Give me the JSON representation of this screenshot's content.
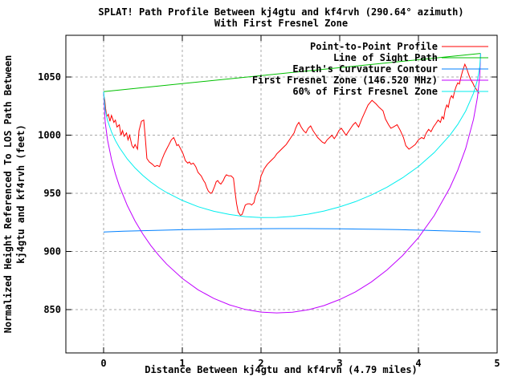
{
  "chart_data": {
    "type": "line",
    "title_line1": "SPLAT! Path Profile Between kj4gtu and kf4rvh (290.64° azimuth)",
    "title_line2": "With First Fresnel Zone",
    "xlabel": "Distance Between kj4gtu and kf4rvh (4.79 miles)",
    "ylabel_line1": "Normalized Height Referenced To LOS Path Between",
    "ylabel_line2": "kj4gtu and kf4rvh (feet)",
    "grid": true,
    "legend_position": "top-right",
    "colors": {
      "background": "#ffffff",
      "border": "#000000",
      "grid": "#a8a8a8",
      "text": "#000000"
    },
    "x_axis": {
      "range": [
        -0.48,
        5.0
      ],
      "ticks": [
        0,
        1,
        2,
        3,
        4,
        5
      ]
    },
    "y_axis": {
      "range": [
        812.8,
        1085.9
      ],
      "ticks": [
        850,
        900,
        950,
        1000,
        1050
      ]
    },
    "path": {
      "start_site": "kj4gtu",
      "end_site": "kf4rvh",
      "azimuth_deg": 290.64,
      "distance_miles": 4.79,
      "frequency_mhz": 146.52
    },
    "series": [
      {
        "name": "Point-to-Point Profile",
        "color": "#ff0000",
        "points": [
          [
            0,
            1035
          ],
          [
            0.015,
            1030
          ],
          [
            0.025,
            1023
          ],
          [
            0.04,
            1016
          ],
          [
            0.06,
            1018
          ],
          [
            0.08,
            1012
          ],
          [
            0.1,
            1017
          ],
          [
            0.13,
            1011
          ],
          [
            0.15,
            1013
          ],
          [
            0.17,
            1007
          ],
          [
            0.2,
            1009
          ],
          [
            0.22,
            1000
          ],
          [
            0.24,
            1004
          ],
          [
            0.26,
            999
          ],
          [
            0.29,
            1002
          ],
          [
            0.31,
            996
          ],
          [
            0.33,
            1000
          ],
          [
            0.36,
            991
          ],
          [
            0.38,
            989
          ],
          [
            0.4,
            992
          ],
          [
            0.43,
            988
          ],
          [
            0.45,
            1004
          ],
          [
            0.48,
            1012
          ],
          [
            0.51,
            1013
          ],
          [
            0.53,
            997
          ],
          [
            0.55,
            980
          ],
          [
            0.58,
            977
          ],
          [
            0.62,
            975
          ],
          [
            0.65,
            973
          ],
          [
            0.68,
            974
          ],
          [
            0.71,
            973
          ],
          [
            0.74,
            979
          ],
          [
            0.77,
            984
          ],
          [
            0.8,
            988
          ],
          [
            0.83,
            992
          ],
          [
            0.86,
            996
          ],
          [
            0.89,
            998
          ],
          [
            0.91,
            995
          ],
          [
            0.93,
            991
          ],
          [
            0.95,
            992
          ],
          [
            0.98,
            988
          ],
          [
            1.01,
            984
          ],
          [
            1.04,
            978
          ],
          [
            1.07,
            976
          ],
          [
            1.09,
            977
          ],
          [
            1.11,
            975
          ],
          [
            1.14,
            976
          ],
          [
            1.17,
            973
          ],
          [
            1.2,
            968
          ],
          [
            1.24,
            965
          ],
          [
            1.27,
            961
          ],
          [
            1.29,
            959
          ],
          [
            1.31,
            955
          ],
          [
            1.33,
            952
          ],
          [
            1.36,
            950
          ],
          [
            1.38,
            951
          ],
          [
            1.41,
            956
          ],
          [
            1.43,
            960
          ],
          [
            1.45,
            961
          ],
          [
            1.47,
            959
          ],
          [
            1.49,
            958
          ],
          [
            1.52,
            961
          ],
          [
            1.54,
            964
          ],
          [
            1.56,
            966
          ],
          [
            1.59,
            965
          ],
          [
            1.62,
            965
          ],
          [
            1.65,
            963
          ],
          [
            1.67,
            951
          ],
          [
            1.69,
            941
          ],
          [
            1.71,
            934
          ],
          [
            1.74,
            931
          ],
          [
            1.76,
            932
          ],
          [
            1.78,
            936
          ],
          [
            1.8,
            940
          ],
          [
            1.83,
            941
          ],
          [
            1.86,
            941
          ],
          [
            1.88,
            940
          ],
          [
            1.91,
            942
          ],
          [
            1.93,
            948
          ],
          [
            1.96,
            952
          ],
          [
            1.98,
            958
          ],
          [
            2.0,
            965
          ],
          [
            2.02,
            968
          ],
          [
            2.04,
            971
          ],
          [
            2.06,
            973
          ],
          [
            2.08,
            975
          ],
          [
            2.11,
            977
          ],
          [
            2.14,
            979
          ],
          [
            2.17,
            981
          ],
          [
            2.2,
            984
          ],
          [
            2.23,
            986
          ],
          [
            2.26,
            988
          ],
          [
            2.29,
            990
          ],
          [
            2.32,
            992
          ],
          [
            2.35,
            995
          ],
          [
            2.37,
            997
          ],
          [
            2.39,
            999
          ],
          [
            2.42,
            1002
          ],
          [
            2.44,
            1006
          ],
          [
            2.46,
            1009
          ],
          [
            2.48,
            1011
          ],
          [
            2.51,
            1007
          ],
          [
            2.54,
            1004
          ],
          [
            2.57,
            1002
          ],
          [
            2.6,
            1006
          ],
          [
            2.63,
            1008
          ],
          [
            2.66,
            1004
          ],
          [
            2.69,
            1001
          ],
          [
            2.72,
            998
          ],
          [
            2.75,
            996
          ],
          [
            2.78,
            994
          ],
          [
            2.81,
            993
          ],
          [
            2.84,
            996
          ],
          [
            2.87,
            998
          ],
          [
            2.9,
            1000
          ],
          [
            2.93,
            997
          ],
          [
            2.96,
            1000
          ],
          [
            2.99,
            1004
          ],
          [
            3.02,
            1006
          ],
          [
            3.05,
            1003
          ],
          [
            3.08,
            1000
          ],
          [
            3.11,
            1003
          ],
          [
            3.14,
            1006
          ],
          [
            3.17,
            1009
          ],
          [
            3.2,
            1011
          ],
          [
            3.24,
            1007
          ],
          [
            3.28,
            1014
          ],
          [
            3.32,
            1020
          ],
          [
            3.36,
            1026
          ],
          [
            3.41,
            1030
          ],
          [
            3.46,
            1027
          ],
          [
            3.5,
            1024
          ],
          [
            3.55,
            1021
          ],
          [
            3.58,
            1014
          ],
          [
            3.62,
            1009
          ],
          [
            3.65,
            1006
          ],
          [
            3.68,
            1007
          ],
          [
            3.73,
            1009
          ],
          [
            3.77,
            1004
          ],
          [
            3.81,
            998
          ],
          [
            3.84,
            991
          ],
          [
            3.88,
            988
          ],
          [
            3.92,
            990
          ],
          [
            3.96,
            992
          ],
          [
            4.0,
            996
          ],
          [
            4.04,
            998
          ],
          [
            4.07,
            997
          ],
          [
            4.1,
            1002
          ],
          [
            4.13,
            1005
          ],
          [
            4.16,
            1003
          ],
          [
            4.19,
            1007
          ],
          [
            4.22,
            1010
          ],
          [
            4.25,
            1013
          ],
          [
            4.28,
            1011
          ],
          [
            4.3,
            1016
          ],
          [
            4.32,
            1014
          ],
          [
            4.34,
            1022
          ],
          [
            4.36,
            1026
          ],
          [
            4.38,
            1024
          ],
          [
            4.4,
            1031
          ],
          [
            4.42,
            1034
          ],
          [
            4.44,
            1032
          ],
          [
            4.46,
            1038
          ],
          [
            4.48,
            1042
          ],
          [
            4.5,
            1045
          ],
          [
            4.52,
            1044
          ],
          [
            4.54,
            1050
          ],
          [
            4.56,
            1055
          ],
          [
            4.59,
            1061
          ],
          [
            4.61,
            1058
          ],
          [
            4.63,
            1054
          ],
          [
            4.65,
            1050
          ],
          [
            4.67,
            1047
          ],
          [
            4.69,
            1045
          ],
          [
            4.71,
            1042
          ],
          [
            4.74,
            1039
          ],
          [
            4.77,
            1036
          ]
        ]
      },
      {
        "name": "Line of Sight Path",
        "color": "#00c000",
        "points": [
          [
            0,
            1037.5
          ],
          [
            4.79,
            1070.3
          ]
        ]
      },
      {
        "name": "Earth's Curvature Contour",
        "color": "#0080ff",
        "points": [
          [
            0,
            916.8
          ],
          [
            0.25,
            917.4
          ],
          [
            0.5,
            917.9
          ],
          [
            0.75,
            918.3
          ],
          [
            1,
            918.7
          ],
          [
            1.25,
            919.0
          ],
          [
            1.5,
            919.3
          ],
          [
            1.75,
            919.5
          ],
          [
            2,
            919.6
          ],
          [
            2.25,
            919.7
          ],
          [
            2.5,
            919.7
          ],
          [
            2.75,
            919.6
          ],
          [
            3,
            919.5
          ],
          [
            3.25,
            919.3
          ],
          [
            3.5,
            919.1
          ],
          [
            3.75,
            918.8
          ],
          [
            4,
            918.4
          ],
          [
            4.25,
            917.9
          ],
          [
            4.5,
            917.4
          ],
          [
            4.79,
            916.8
          ]
        ]
      },
      {
        "name": "First Fresnel Zone (146.520 MHz)",
        "color": "#c000ff",
        "points": [
          [
            0,
            1037.5
          ],
          [
            0.02,
            1011.0
          ],
          [
            0.05,
            995.9
          ],
          [
            0.1,
            979.3
          ],
          [
            0.15,
            966.7
          ],
          [
            0.2,
            956.4
          ],
          [
            0.3,
            939.7
          ],
          [
            0.4,
            926.2
          ],
          [
            0.5,
            914.9
          ],
          [
            0.6,
            905.1
          ],
          [
            0.7,
            896.7
          ],
          [
            0.8,
            889.2
          ],
          [
            1.0,
            876.9
          ],
          [
            1.2,
            867.1
          ],
          [
            1.4,
            859.6
          ],
          [
            1.6,
            854.1
          ],
          [
            1.8,
            850.2
          ],
          [
            2.0,
            847.9
          ],
          [
            2.2,
            847.2
          ],
          [
            2.4,
            847.8
          ],
          [
            2.6,
            849.9
          ],
          [
            2.8,
            853.5
          ],
          [
            3.0,
            858.7
          ],
          [
            3.2,
            865.3
          ],
          [
            3.4,
            873.7
          ],
          [
            3.6,
            884.1
          ],
          [
            3.8,
            896.6
          ],
          [
            4.0,
            911.9
          ],
          [
            4.2,
            930.8
          ],
          [
            4.4,
            954.9
          ],
          [
            4.5,
            970.0
          ],
          [
            4.6,
            988.5
          ],
          [
            4.7,
            1013.7
          ],
          [
            4.75,
            1032.5
          ],
          [
            4.78,
            1051.4
          ],
          [
            4.79,
            1070.3
          ]
        ]
      },
      {
        "name": "60% of First Fresnel Zone",
        "color": "#00eeee",
        "points": [
          [
            0,
            1037.5
          ],
          [
            0.02,
            1021.7
          ],
          [
            0.05,
            1012.7
          ],
          [
            0.1,
            1002.8
          ],
          [
            0.15,
            995.4
          ],
          [
            0.2,
            989.4
          ],
          [
            0.3,
            979.6
          ],
          [
            0.4,
            971.8
          ],
          [
            0.5,
            965.3
          ],
          [
            0.6,
            959.7
          ],
          [
            0.7,
            954.9
          ],
          [
            0.8,
            950.7
          ],
          [
            1.0,
            943.9
          ],
          [
            1.2,
            938.5
          ],
          [
            1.4,
            934.6
          ],
          [
            1.6,
            931.8
          ],
          [
            1.8,
            930.0
          ],
          [
            2.0,
            929.2
          ],
          [
            2.2,
            929.3
          ],
          [
            2.4,
            930.2
          ],
          [
            2.6,
            932.1
          ],
          [
            2.8,
            934.8
          ],
          [
            3.0,
            938.4
          ],
          [
            3.2,
            942.9
          ],
          [
            3.4,
            948.5
          ],
          [
            3.6,
            955.3
          ],
          [
            3.8,
            963.4
          ],
          [
            4.0,
            973.1
          ],
          [
            4.2,
            985.0
          ],
          [
            4.4,
            1000.0
          ],
          [
            4.5,
            1009.3
          ],
          [
            4.6,
            1020.7
          ],
          [
            4.7,
            1036.1
          ],
          [
            4.75,
            1047.5
          ],
          [
            4.78,
            1058.9
          ],
          [
            4.79,
            1070.3
          ]
        ]
      }
    ]
  }
}
